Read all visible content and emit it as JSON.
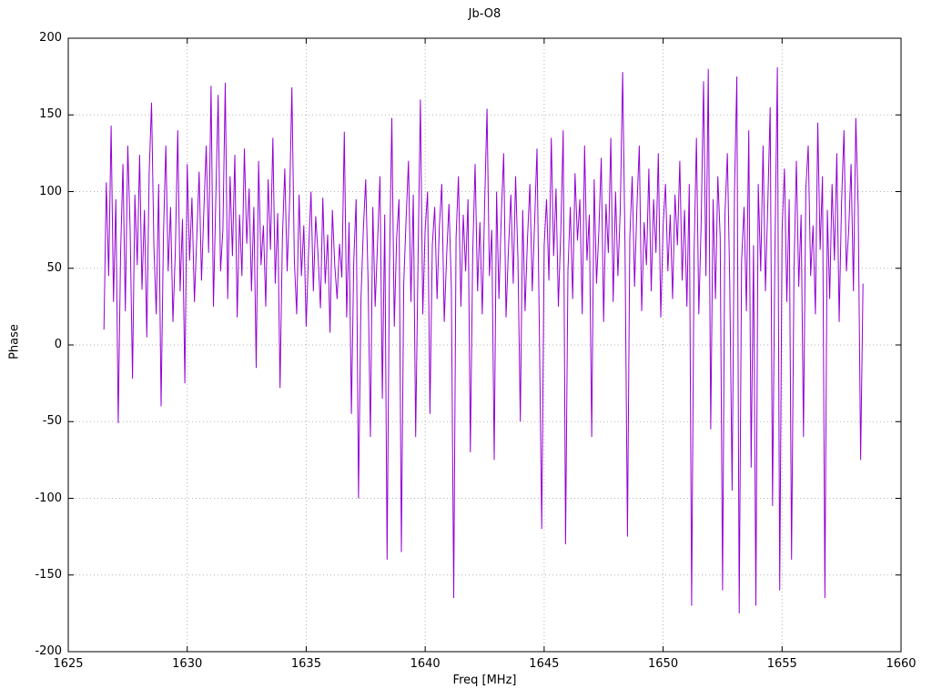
{
  "chart": {
    "title": "Jb-O8",
    "xlabel": "Freq [MHz]",
    "ylabel": "Phase"
  },
  "chart_data": {
    "type": "line",
    "title": "Jb-O8",
    "xlabel": "Freq [MHz]",
    "ylabel": "Phase",
    "xlim": [
      1625,
      1660
    ],
    "ylim": [
      -200,
      200
    ],
    "x_ticks": [
      1625,
      1630,
      1635,
      1640,
      1645,
      1650,
      1655,
      1660
    ],
    "y_ticks": [
      -200,
      -150,
      -100,
      -50,
      0,
      50,
      100,
      150,
      200
    ],
    "grid": true,
    "legend": "none",
    "line_color": "#9400d3",
    "grid_color": "#b3b3b3",
    "border_color": "#000000",
    "x_start": 1626.5,
    "x_step": 0.1,
    "values": [
      10,
      106,
      45,
      143,
      28,
      95,
      -51,
      60,
      118,
      22,
      130,
      75,
      -22,
      98,
      52,
      124,
      36,
      88,
      5,
      112,
      158,
      64,
      20,
      105,
      -40,
      72,
      130,
      48,
      90,
      15,
      60,
      140,
      35,
      82,
      -25,
      118,
      55,
      96,
      28,
      70,
      113,
      42,
      88,
      130,
      60,
      169,
      25,
      95,
      163,
      48,
      75,
      171,
      30,
      110,
      58,
      124,
      18,
      85,
      45,
      128,
      66,
      102,
      35,
      90,
      -15,
      120,
      52,
      78,
      25,
      108,
      62,
      135,
      40,
      86,
      -28,
      70,
      115,
      48,
      92,
      168,
      55,
      20,
      98,
      45,
      78,
      12,
      60,
      100,
      35,
      84,
      58,
      24,
      96,
      40,
      72,
      8,
      88,
      52,
      30,
      66,
      44,
      139,
      18,
      80,
      -45,
      55,
      95,
      -100,
      30,
      75,
      108,
      42,
      -60,
      90,
      25,
      68,
      110,
      -35,
      85,
      -140,
      50,
      148,
      12,
      70,
      95,
      -135,
      40,
      82,
      120,
      28,
      98,
      -60,
      55,
      160,
      20,
      75,
      100,
      -45,
      65,
      90,
      30,
      78,
      105,
      15,
      58,
      92,
      38,
      -165,
      70,
      110,
      25,
      85,
      48,
      95,
      -70,
      60,
      118,
      35,
      80,
      20,
      92,
      154,
      45,
      75,
      -75,
      100,
      30,
      85,
      125,
      18,
      62,
      98,
      40,
      110,
      55,
      -50,
      88,
      22,
      70,
      105,
      35,
      80,
      128,
      10,
      -120,
      65,
      95,
      42,
      135,
      58,
      102,
      25,
      75,
      140,
      -130,
      48,
      90,
      30,
      112,
      68,
      95,
      20,
      130,
      55,
      85,
      -60,
      108,
      40,
      75,
      122,
      15,
      92,
      60,
      135,
      28,
      100,
      45,
      88,
      178,
      65,
      -125,
      70,
      110,
      38,
      90,
      130,
      22,
      80,
      52,
      115,
      35,
      95,
      60,
      125,
      18,
      78,
      105,
      48,
      85,
      30,
      98,
      65,
      120,
      42,
      88,
      25,
      105,
      -170,
      60,
      135,
      20,
      80,
      172,
      45,
      180,
      -55,
      95,
      30,
      110,
      70,
      -160,
      85,
      125,
      40,
      -95,
      100,
      175,
      -175,
      55,
      90,
      22,
      140,
      -80,
      65,
      -170,
      105,
      48,
      130,
      35,
      92,
      155,
      -105,
      60,
      181,
      -160,
      75,
      115,
      28,
      95,
      -140,
      50,
      120,
      38,
      85,
      -60,
      102,
      130,
      45,
      78,
      20,
      145,
      62,
      110,
      -165,
      88,
      30,
      105,
      55,
      125,
      15,
      92,
      140,
      48,
      75,
      118,
      35,
      148,
      90,
      -75,
      40
    ]
  }
}
